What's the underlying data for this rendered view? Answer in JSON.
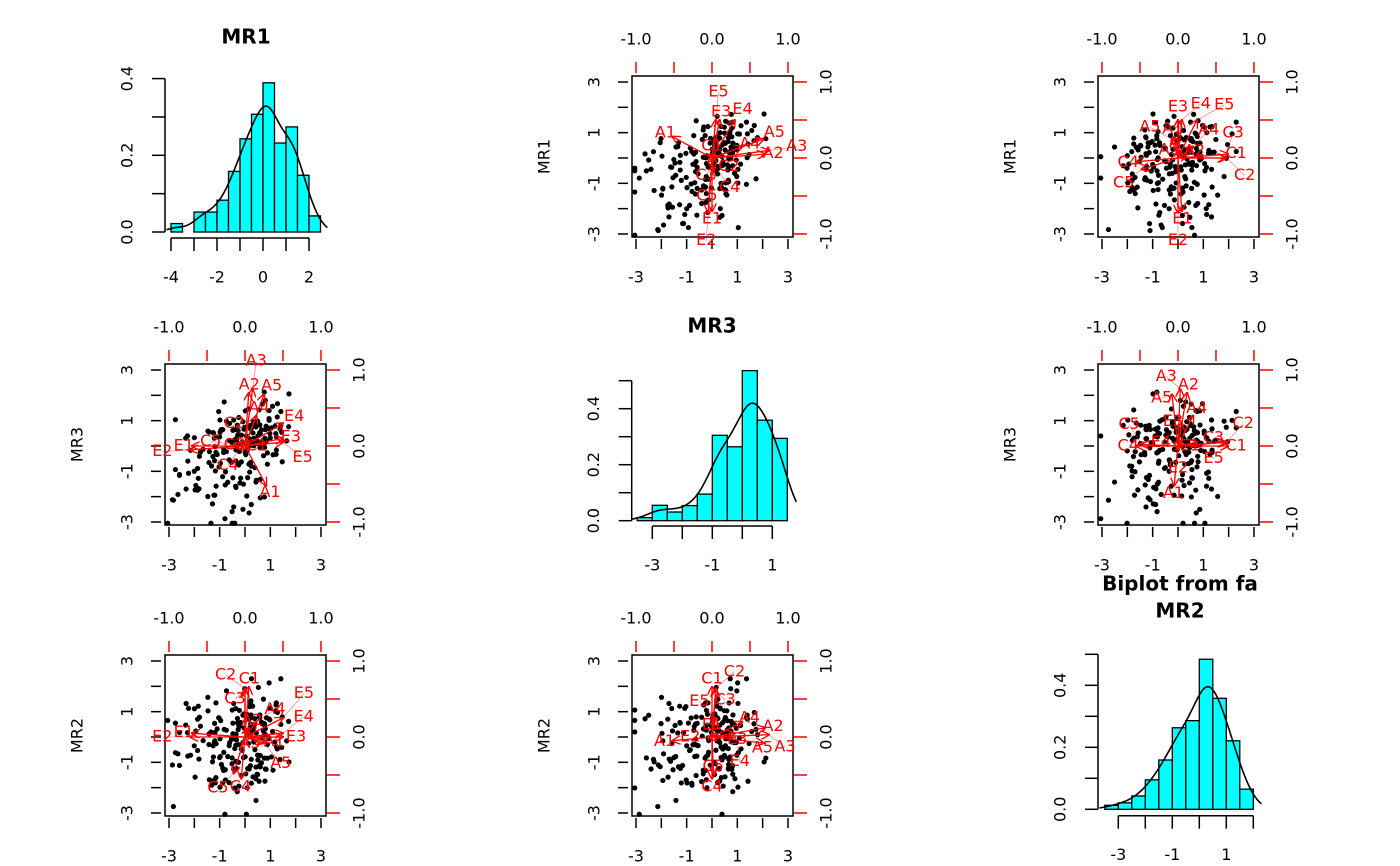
{
  "chart_data": {
    "type": "scatter-matrix-biplot",
    "title": "Biplot from fa",
    "factors": [
      "MR1",
      "MR3",
      "MR2"
    ],
    "colors": {
      "hist_fill": "#00FFFF",
      "loadings": "#FF0000",
      "points": "#000000"
    },
    "score_axis": {
      "range": [
        -3,
        3
      ],
      "ticks": [
        -3,
        -2,
        -1,
        0,
        1,
        2,
        3
      ],
      "labels": [
        "-3",
        "-1",
        "1",
        "3"
      ],
      "label_values": [
        -3,
        -1,
        1,
        3
      ]
    },
    "loading_axis": {
      "range": [
        -1,
        1
      ],
      "ticks": [
        -1,
        -0.5,
        0,
        0.5,
        1
      ],
      "labels": [
        "-1.0",
        "0.0",
        "1.0"
      ],
      "label_values": [
        -1,
        0,
        1
      ]
    },
    "histograms": {
      "MR1": {
        "title": "MR1",
        "bin_start": -4,
        "bin_width": 0.5,
        "density": [
          0.022,
          0,
          0.052,
          0.052,
          0.083,
          0.158,
          0.243,
          0.307,
          0.389,
          0.232,
          0.274,
          0.148,
          0.042
        ],
        "x_ticks": [
          -4,
          -3,
          -2,
          -1,
          0,
          1,
          2
        ],
        "x_labels": [
          "-4",
          "-2",
          "0",
          "2"
        ],
        "x_label_values": [
          -4,
          -2,
          0,
          2
        ],
        "y_ticks": [
          0,
          0.1,
          0.2,
          0.3,
          0.4
        ],
        "y_labels": [
          "0.0",
          "0.2",
          "0.4"
        ],
        "y_label_values": [
          0,
          0.2,
          0.4
        ]
      },
      "MR3": {
        "title": "MR3",
        "bin_start": -3.5,
        "bin_width": 0.5,
        "density": [
          0.011,
          0.055,
          0.031,
          0.054,
          0.095,
          0.305,
          0.264,
          0.536,
          0.359,
          0.294
        ],
        "x_ticks": [
          -3,
          -2,
          -1,
          0,
          1
        ],
        "x_labels": [
          "-3",
          "-1",
          "1"
        ],
        "x_label_values": [
          -3,
          -1,
          1
        ],
        "y_ticks": [
          0,
          0.1,
          0.2,
          0.3,
          0.4,
          0.5
        ],
        "y_labels": [
          "0.0",
          "0.2",
          "0.4"
        ],
        "y_label_values": [
          0,
          0.2,
          0.4
        ]
      },
      "MR2": {
        "title": "MR2",
        "bin_start": -3.5,
        "bin_width": 0.5,
        "density": [
          0.013,
          0.021,
          0.043,
          0.095,
          0.159,
          0.263,
          0.286,
          0.484,
          0.358,
          0.221,
          0.065
        ],
        "x_ticks": [
          -3,
          -2,
          -1,
          0,
          1,
          2
        ],
        "x_labels": [
          "-3",
          "-1",
          "1"
        ],
        "x_label_values": [
          -3,
          -1,
          1
        ],
        "y_ticks": [
          0,
          0.1,
          0.2,
          0.3,
          0.4,
          0.5
        ],
        "y_labels": [
          "0.0",
          "0.2",
          "0.4"
        ],
        "y_label_values": [
          0,
          0.2,
          0.4
        ]
      }
    },
    "loadings": {
      "A1": [
        0.28,
        -0.52,
        -0.05
      ],
      "A2": [
        0.05,
        0.7,
        0.12
      ],
      "A3": [
        0.1,
        0.75,
        0.03
      ],
      "A4": [
        0.15,
        0.4,
        0.2
      ],
      "A5": [
        0.25,
        0.68,
        -0.08
      ],
      "C1": [
        0.05,
        0.0,
        0.66
      ],
      "C2": [
        0.0,
        0.05,
        0.64
      ],
      "C3": [
        0.0,
        0.05,
        0.62
      ],
      "C4": [
        -0.05,
        0.0,
        -0.55
      ],
      "C5": [
        -0.15,
        0.02,
        -0.48
      ],
      "E1": [
        -0.7,
        0.0,
        0.05
      ],
      "E2": [
        -0.72,
        -0.05,
        0.0
      ],
      "E3": [
        0.5,
        0.1,
        0.0
      ],
      "E4": [
        0.5,
        0.3,
        0.05
      ],
      "E5": [
        0.5,
        0.05,
        0.25
      ]
    }
  }
}
